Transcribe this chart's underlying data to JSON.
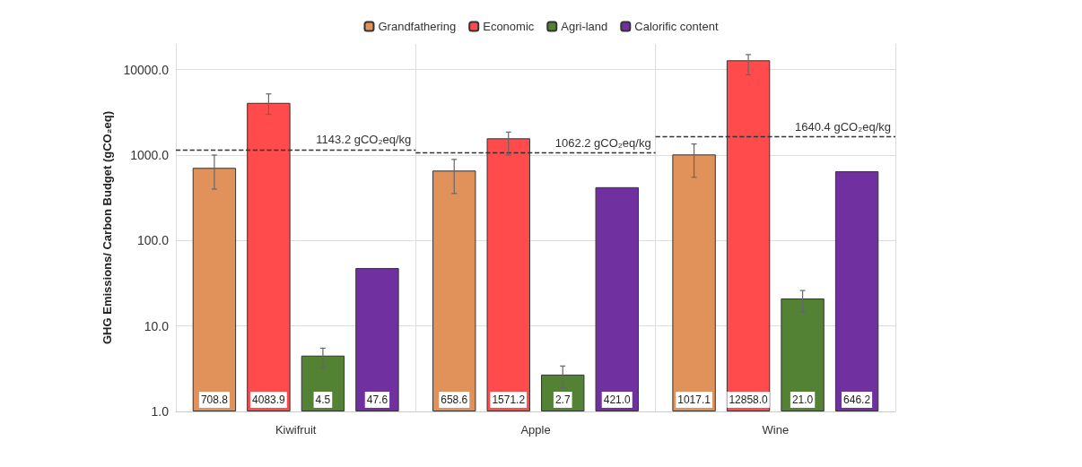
{
  "chart_data": {
    "type": "bar",
    "ylabel": "GHG Emissions/ Carbon Budget (gCO₂eq)",
    "categories": [
      "Kiwifruit",
      "Apple",
      "Wine"
    ],
    "series": [
      {
        "name": "Grandfathering",
        "color": "#e0925a",
        "values": [
          708.8,
          658.6,
          1017.1
        ],
        "value_labels": [
          "708.8",
          "658.6",
          "1017.1"
        ],
        "errors": [
          [
            400,
            1000
          ],
          [
            355,
            890
          ],
          [
            550,
            1350
          ]
        ]
      },
      {
        "name": "Economic",
        "color": "#ff4b4b",
        "values": [
          4083.9,
          1571.2,
          12858.0
        ],
        "value_labels": [
          "4083.9",
          "1571.2",
          "12858.0"
        ],
        "errors": [
          [
            3000,
            5200
          ],
          [
            1000,
            1860
          ],
          [
            8700,
            15000
          ]
        ]
      },
      {
        "name": "Agri-land",
        "color": "#548235",
        "values": [
          4.5,
          2.7,
          21.0
        ],
        "value_labels": [
          "4.5",
          "2.7",
          "21.0"
        ],
        "errors": [
          [
            3.2,
            5.5
          ],
          [
            1.9,
            3.4
          ],
          [
            14.5,
            26
          ]
        ]
      },
      {
        "name": "Calorific content",
        "color": "#7030a0",
        "values": [
          47.6,
          421.0,
          646.2
        ],
        "value_labels": [
          "47.6",
          "421.0",
          "646.2"
        ]
      }
    ],
    "log": "y",
    "ylim": [
      1,
      20000
    ],
    "yticks": [
      {
        "value": 1,
        "label": "1.0"
      },
      {
        "value": 10,
        "label": "10.0"
      },
      {
        "value": 100,
        "label": "100.0"
      },
      {
        "value": 1000,
        "label": "1000.0"
      },
      {
        "value": 10000,
        "label": "10000.0"
      }
    ],
    "ref_lines": [
      {
        "axis": "y",
        "value": 1143.2,
        "label": "1143.2 gCO₂eq/kg",
        "line_style": "dashed"
      },
      {
        "axis": "y",
        "value": 1062.2,
        "label": "1062.2 gCO₂eq/kg",
        "line_style": "dashed"
      },
      {
        "axis": "y",
        "value": 1640.4,
        "label": "1640.4 gCO₂eq/kg",
        "line_style": "dashed"
      }
    ],
    "grid": true,
    "legend": "top"
  }
}
